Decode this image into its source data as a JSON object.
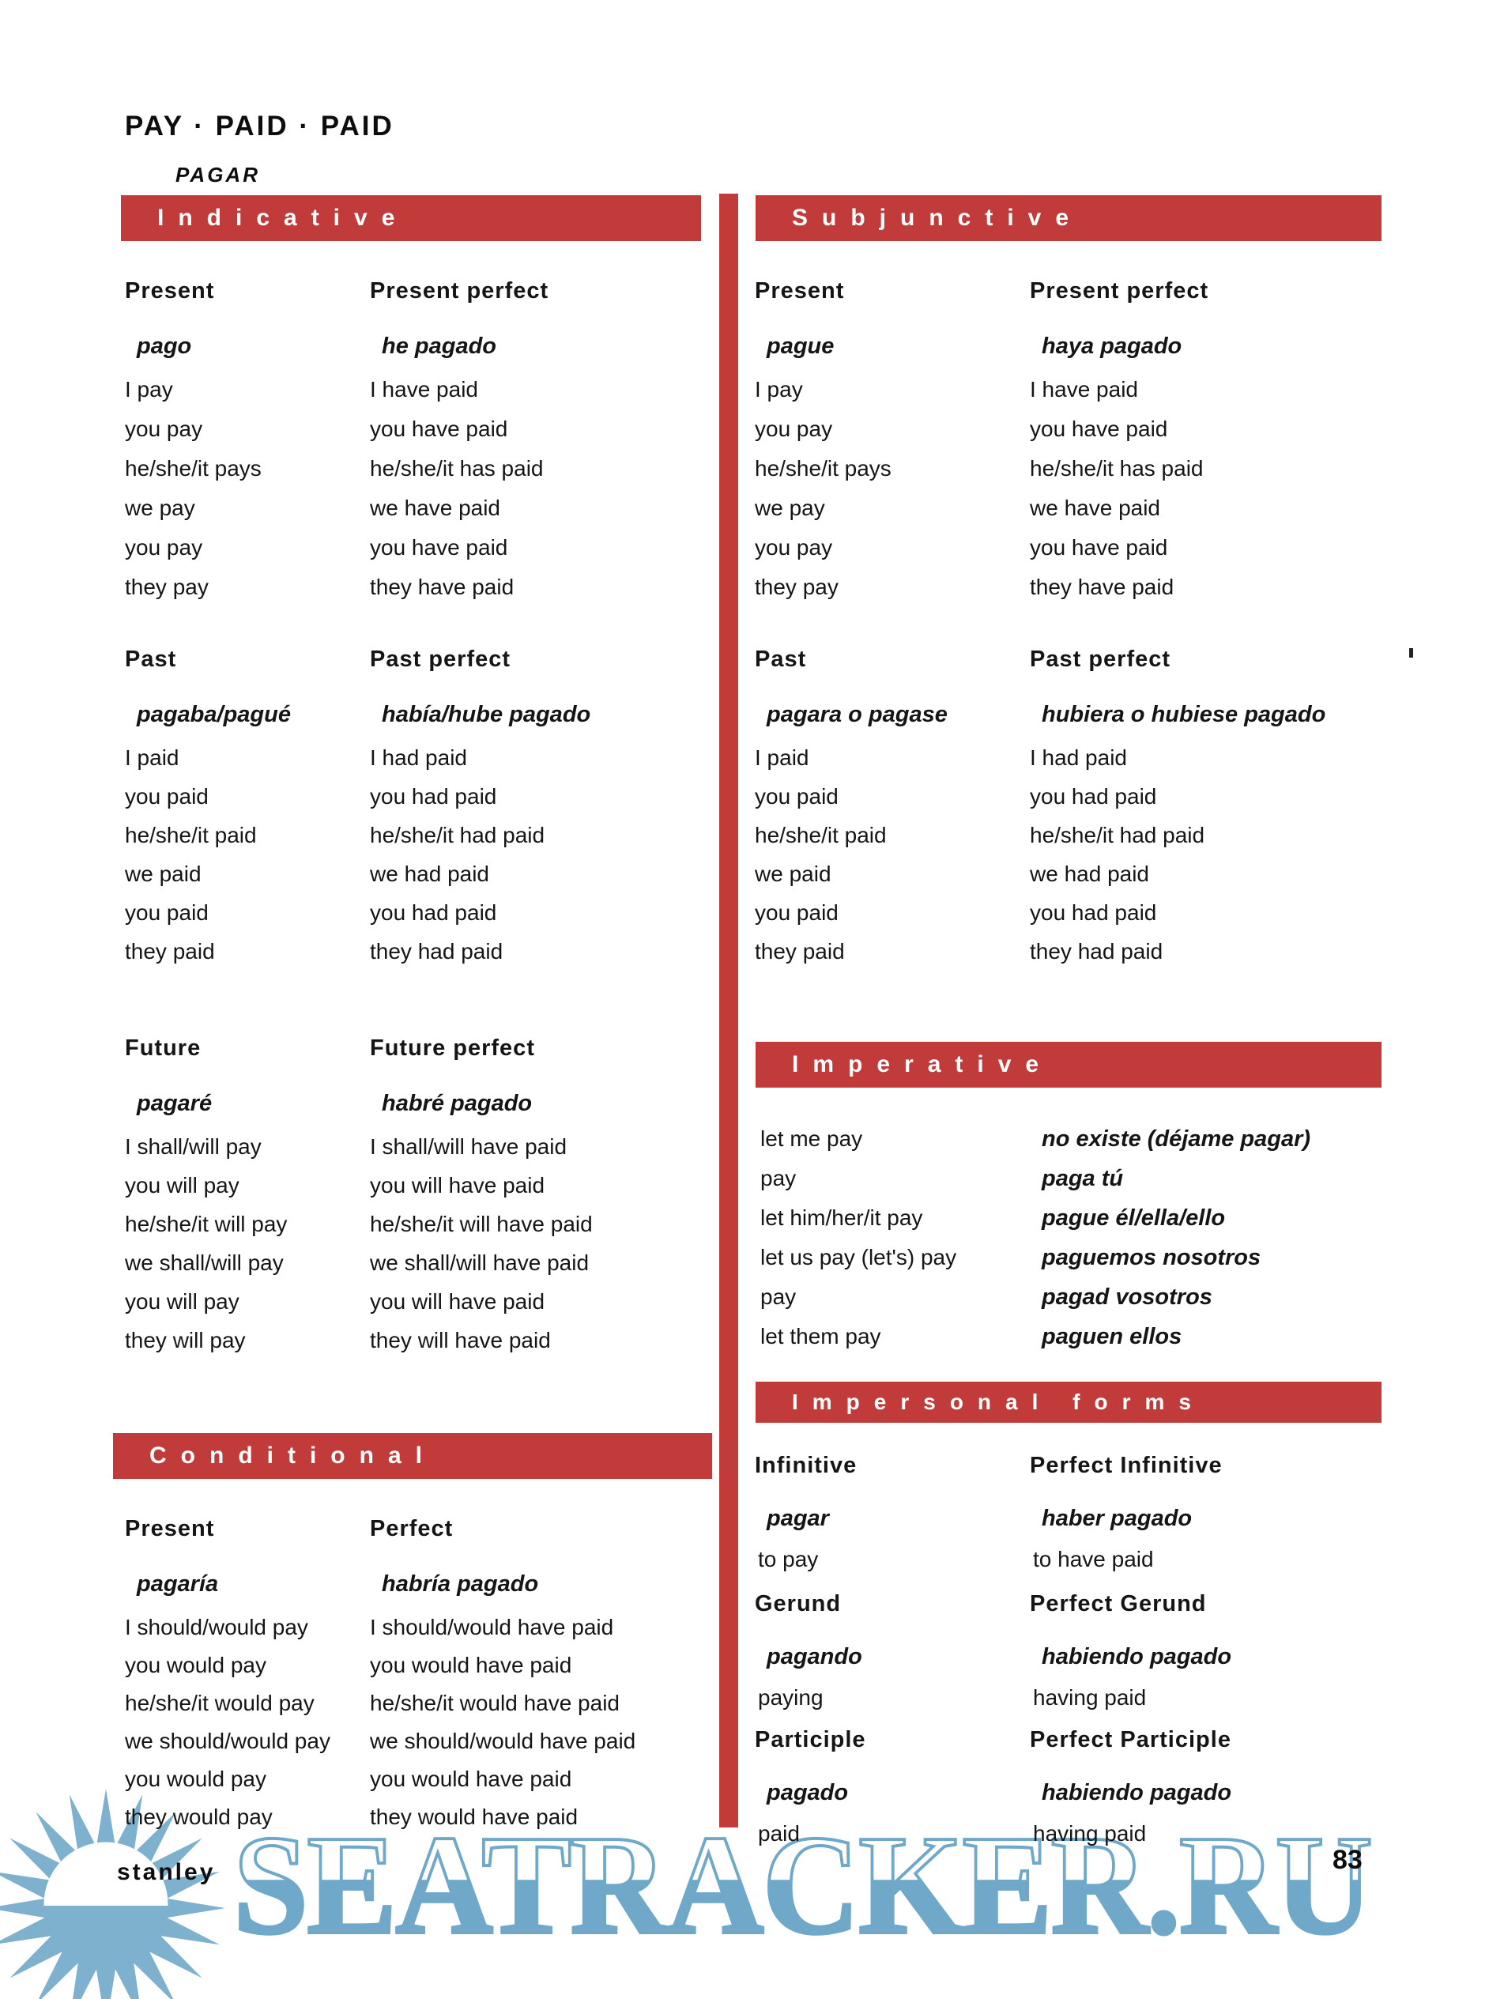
{
  "page": {
    "title": "PAY · PAID · PAID",
    "subtitle": "PAGAR"
  },
  "colors": {
    "bar_red": "#C13B3B",
    "watermark_blue": "#6FA8C8",
    "sun_blue": "#7EB1CE"
  },
  "sections": {
    "indicative": {
      "label": "Indicative",
      "present": {
        "heading": "Present",
        "spanish": "pago",
        "rows": [
          "I pay",
          "you pay",
          "he/she/it pays",
          "we pay",
          "you pay",
          "they pay"
        ]
      },
      "present_perfect": {
        "heading": "Present perfect",
        "spanish": "he pagado",
        "rows": [
          "I have paid",
          "you have paid",
          "he/she/it has paid",
          "we have paid",
          "you have paid",
          "they have paid"
        ]
      },
      "past": {
        "heading": "Past",
        "spanish": "pagaba/pagué",
        "rows": [
          "I paid",
          "you paid",
          "he/she/it paid",
          "we paid",
          "you paid",
          "they paid"
        ]
      },
      "past_perfect": {
        "heading": "Past perfect",
        "spanish": "había/hube pagado",
        "rows": [
          "I had paid",
          "you had paid",
          "he/she/it had paid",
          "we had paid",
          "you had paid",
          "they had paid"
        ]
      },
      "future": {
        "heading": "Future",
        "spanish": "pagaré",
        "rows": [
          "I shall/will pay",
          "you will pay",
          "he/she/it will pay",
          "we shall/will pay",
          "you will pay",
          "they will pay"
        ]
      },
      "future_perfect": {
        "heading": "Future perfect",
        "spanish": "habré pagado",
        "rows": [
          "I shall/will have paid",
          "you will have paid",
          "he/she/it will have paid",
          "we shall/will have paid",
          "you will have paid",
          "they will have paid"
        ]
      }
    },
    "conditional": {
      "label": "Conditional",
      "present": {
        "heading": "Present",
        "spanish": "pagaría",
        "rows": [
          "I should/would pay",
          "you would pay",
          "he/she/it would pay",
          "we should/would pay",
          "you would pay",
          "they would pay"
        ]
      },
      "perfect": {
        "heading": "Perfect",
        "spanish": "habría pagado",
        "rows": [
          "I should/would have paid",
          "you would have paid",
          "he/she/it would have paid",
          "we should/would have paid",
          "you would have paid",
          "they would have paid"
        ]
      }
    },
    "subjunctive": {
      "label": "Subjunctive",
      "present": {
        "heading": "Present",
        "spanish": "pague",
        "rows": [
          "I pay",
          "you pay",
          "he/she/it pays",
          "we pay",
          "you pay",
          "they pay"
        ]
      },
      "present_perfect": {
        "heading": "Present perfect",
        "spanish": "haya pagado",
        "rows": [
          "I have paid",
          "you have paid",
          "he/she/it has paid",
          "we have paid",
          "you have paid",
          "they have paid"
        ]
      },
      "past": {
        "heading": "Past",
        "spanish": "pagara o pagase",
        "rows": [
          "I paid",
          "you paid",
          "he/she/it paid",
          "we paid",
          "you paid",
          "they paid"
        ]
      },
      "past_perfect": {
        "heading": "Past perfect",
        "spanish": "hubiera o hubiese pagado",
        "rows": [
          "I had paid",
          "you had paid",
          "he/she/it had paid",
          "we had paid",
          "you had paid",
          "they had paid"
        ]
      }
    },
    "imperative": {
      "label": "Imperative",
      "english": [
        "let me pay",
        "pay",
        "let him/her/it pay",
        "let us pay (let's) pay",
        "pay",
        "let them pay"
      ],
      "spanish": [
        "no existe (déjame pagar)",
        "paga tú",
        "pague él/ella/ello",
        "paguemos nosotros",
        "pagad vosotros",
        "paguen ellos"
      ]
    },
    "impersonal": {
      "label": "Impersonal forms",
      "infinitive": {
        "heading": "Infinitive",
        "spanish": "pagar",
        "english": "to pay"
      },
      "perfect_infinitive": {
        "heading": "Perfect Infinitive",
        "spanish": "haber pagado",
        "english": "to have paid"
      },
      "gerund": {
        "heading": "Gerund",
        "spanish": "pagando",
        "english": "paying"
      },
      "perfect_gerund": {
        "heading": "Perfect Gerund",
        "spanish": "habiendo pagado",
        "english": "having paid"
      },
      "participle": {
        "heading": "Participle",
        "spanish": "pagado",
        "english": "paid"
      },
      "perfect_participle": {
        "heading": "Perfect Participle",
        "spanish": "habiendo pagado",
        "english": "having paid"
      }
    }
  },
  "footer": {
    "brand": "stanley",
    "page_number": "83",
    "watermark": "SEATRACKER.RU"
  }
}
